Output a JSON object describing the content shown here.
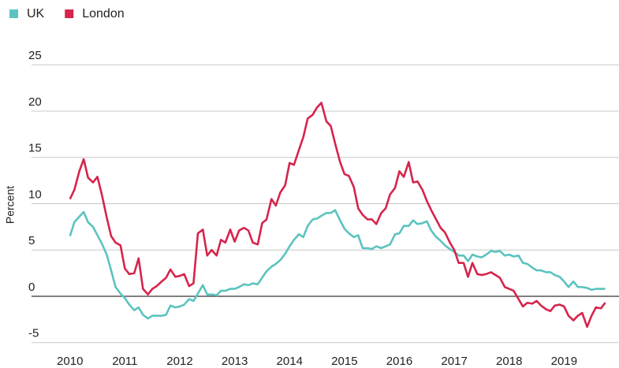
{
  "chart_data": {
    "type": "line",
    "y_label": "Percent",
    "x": [
      2010,
      2010.08,
      2010.17,
      2010.25,
      2010.33,
      2010.42,
      2010.5,
      2010.58,
      2010.67,
      2010.75,
      2010.83,
      2010.92,
      2011,
      2011.08,
      2011.17,
      2011.25,
      2011.33,
      2011.42,
      2011.5,
      2011.58,
      2011.67,
      2011.75,
      2011.83,
      2011.92,
      2012,
      2012.08,
      2012.17,
      2012.25,
      2012.33,
      2012.42,
      2012.5,
      2012.58,
      2012.67,
      2012.75,
      2012.83,
      2012.92,
      2013,
      2013.08,
      2013.17,
      2013.25,
      2013.33,
      2013.42,
      2013.5,
      2013.58,
      2013.67,
      2013.75,
      2013.83,
      2013.92,
      2014,
      2014.08,
      2014.17,
      2014.25,
      2014.33,
      2014.42,
      2014.5,
      2014.58,
      2014.67,
      2014.75,
      2014.83,
      2014.92,
      2015,
      2015.08,
      2015.17,
      2015.25,
      2015.33,
      2015.42,
      2015.5,
      2015.58,
      2015.67,
      2015.75,
      2015.83,
      2015.92,
      2016,
      2016.08,
      2016.17,
      2016.25,
      2016.33,
      2016.42,
      2016.5,
      2016.58,
      2016.67,
      2016.75,
      2016.83,
      2016.92,
      2017,
      2017.08,
      2017.17,
      2017.25,
      2017.33,
      2017.42,
      2017.5,
      2017.58,
      2017.67,
      2017.75,
      2017.83,
      2017.92,
      2018,
      2018.08,
      2018.17,
      2018.25,
      2018.33,
      2018.42,
      2018.5,
      2018.58,
      2018.67,
      2018.75,
      2018.83,
      2018.92,
      2019,
      2019.08,
      2019.17,
      2019.25,
      2019.33,
      2019.42,
      2019.5,
      2019.58,
      2019.67,
      2019.75
    ],
    "series": [
      {
        "name": "UK",
        "color": "#5bc3bf",
        "values": [
          6.5,
          8,
          8.6,
          9.1,
          8,
          7.5,
          6.6,
          5.7,
          4.5,
          2.8,
          1,
          0.3,
          -0.2,
          -0.9,
          -1.5,
          -1.2,
          -2,
          -2.4,
          -2.1,
          -2.1,
          -2.1,
          -2,
          -1,
          -1.2,
          -1.1,
          -0.9,
          -0.3,
          -0.5,
          0.3,
          1.2,
          0.2,
          0.2,
          0.1,
          0.6,
          0.6,
          0.8,
          0.8,
          1,
          1.3,
          1.2,
          1.4,
          1.3,
          2,
          2.7,
          3.2,
          3.5,
          3.9,
          4.6,
          5.4,
          6.1,
          6.7,
          6.4,
          7.6,
          8.3,
          8.4,
          8.7,
          9,
          9,
          9.3,
          8.2,
          7.3,
          6.8,
          6.4,
          6.6,
          5.2,
          5.2,
          5.1,
          5.4,
          5.2,
          5.4,
          5.6,
          6.7,
          6.8,
          7.6,
          7.6,
          8.2,
          7.8,
          7.9,
          8.1,
          7.1,
          6.4,
          6,
          5.5,
          5.1,
          4.8,
          4.4,
          4.4,
          3.8,
          4.5,
          4.3,
          4.2,
          4.5,
          4.9,
          4.8,
          4.9,
          4.4,
          4.5,
          4.3,
          4.4,
          3.6,
          3.5,
          3.1,
          2.8,
          2.8,
          2.6,
          2.6,
          2.3,
          2.1,
          1.6,
          1,
          1.6,
          1,
          1,
          0.9,
          0.7,
          0.8,
          0.8,
          0.8
        ]
      },
      {
        "name": "London",
        "color": "#d6244b",
        "values": [
          10.5,
          11.5,
          13.5,
          14.8,
          12.8,
          12.3,
          12.9,
          11,
          8.5,
          6.5,
          5.8,
          5.5,
          3,
          2.4,
          2.5,
          4.1,
          0.8,
          0.2,
          0.8,
          1.1,
          1.6,
          2,
          2.9,
          2.1,
          2.2,
          2.4,
          1.1,
          1.4,
          6.8,
          7.2,
          4.4,
          5,
          4.4,
          6.1,
          5.8,
          7.2,
          5.9,
          7.1,
          7.4,
          7.1,
          5.8,
          5.6,
          7.9,
          8.3,
          10.5,
          9.8,
          11.2,
          12,
          14.4,
          14.2,
          15.8,
          17.2,
          19.2,
          19.6,
          20.4,
          20.9,
          18.9,
          18.4,
          16.5,
          14.5,
          13.2,
          13,
          11.8,
          9.5,
          8.8,
          8.3,
          8.3,
          7.8,
          9,
          9.5,
          11,
          11.7,
          13.5,
          12.9,
          14.5,
          12.3,
          12.4,
          11.5,
          10.3,
          9.3,
          8.3,
          7.4,
          6.9,
          5.8,
          5,
          3.6,
          3.6,
          2.1,
          3.6,
          2.4,
          2.3,
          2.4,
          2.6,
          2.3,
          2,
          1,
          0.8,
          0.6,
          -0.3,
          -1.1,
          -0.7,
          -0.8,
          -0.5,
          -1,
          -1.4,
          -1.6,
          -1,
          -0.9,
          -1.1,
          -2.1,
          -2.6,
          -2.1,
          -1.8,
          -3.3,
          -2.1,
          -1.2,
          -1.3,
          -0.7
        ]
      }
    ],
    "xlim": [
      2009.3,
      2020
    ],
    "xticks": [
      2010,
      2011,
      2012,
      2013,
      2014,
      2015,
      2016,
      2017,
      2018,
      2019
    ],
    "ylim": [
      -6,
      27
    ],
    "yticks": [
      -5,
      0,
      5,
      10,
      15,
      20,
      25
    ],
    "grid": true,
    "legend": "top-left"
  }
}
